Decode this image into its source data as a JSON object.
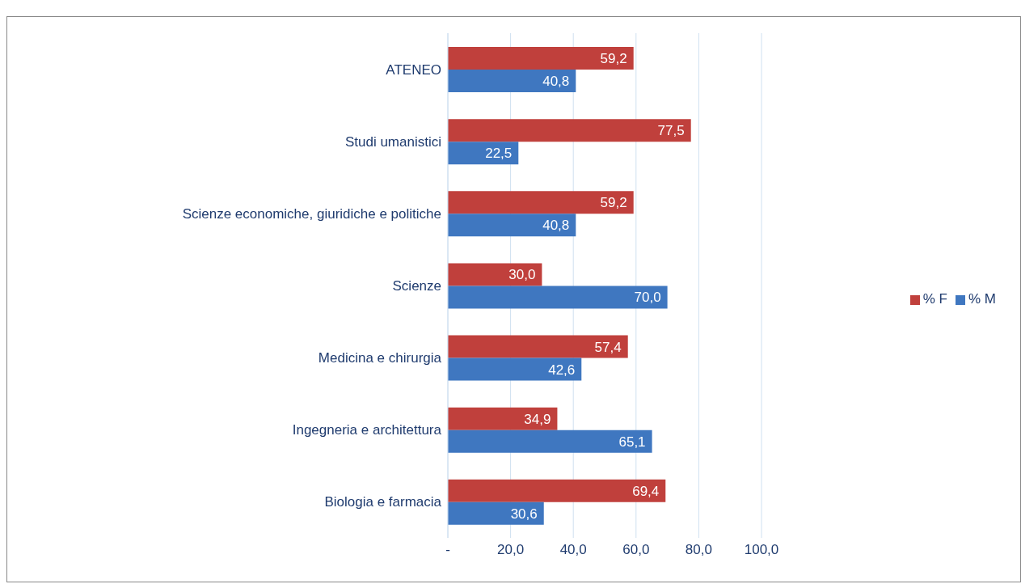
{
  "chart_data": {
    "type": "bar",
    "orientation": "horizontal",
    "categories": [
      "ATENEO",
      "Studi umanistici",
      "Scienze economiche, giuridiche e politiche",
      "Scienze",
      "Medicina e chirurgia",
      "Ingegneria e architettura",
      "Biologia e farmacia"
    ],
    "series": [
      {
        "name": "% F",
        "color": "#c0403c",
        "values": [
          59.2,
          77.5,
          59.2,
          30.0,
          57.4,
          34.9,
          69.4
        ],
        "value_labels": [
          "59,2",
          "77,5",
          "59,2",
          "30,0",
          "57,4",
          "34,9",
          "69,4"
        ]
      },
      {
        "name": "% M",
        "color": "#3f77c0",
        "values": [
          40.8,
          22.5,
          40.8,
          70.0,
          42.6,
          65.1,
          30.6
        ],
        "value_labels": [
          "40,8",
          "22,5",
          "40,8",
          "70,0",
          "42,6",
          "65,1",
          "30,6"
        ]
      }
    ],
    "xlim": [
      0,
      100
    ],
    "xticks": [
      {
        "value": 0,
        "label": "-"
      },
      {
        "value": 20,
        "label": "20,0"
      },
      {
        "value": 40,
        "label": "40,0"
      },
      {
        "value": 60,
        "label": "60,0"
      },
      {
        "value": 80,
        "label": "80,0"
      },
      {
        "value": 100,
        "label": "100,0"
      }
    ],
    "grid": "x",
    "legend": "right"
  }
}
